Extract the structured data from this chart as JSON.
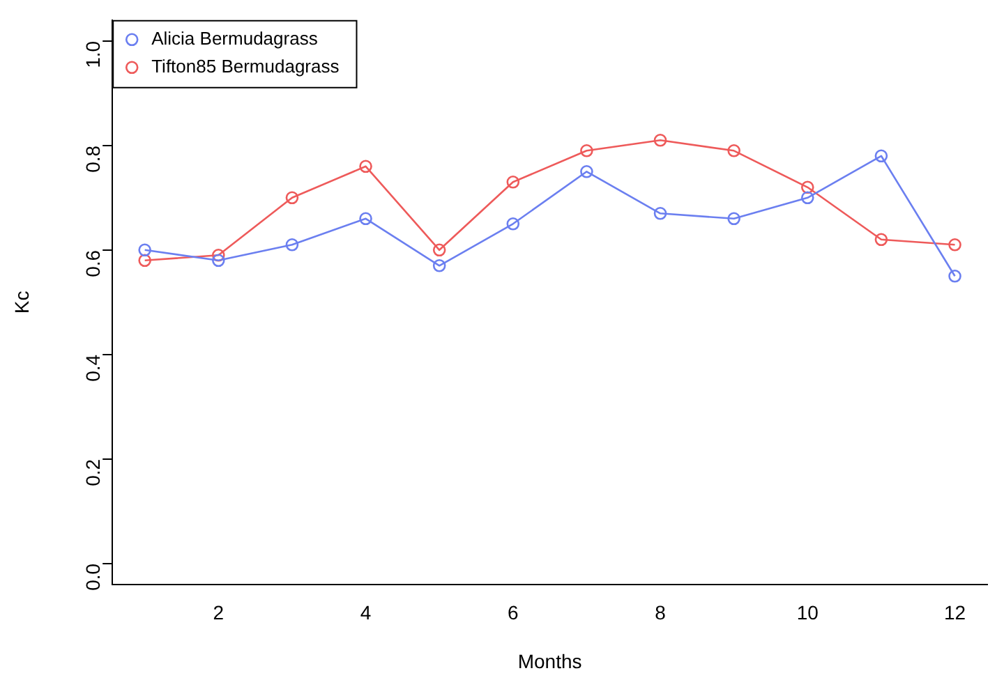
{
  "chart_data": {
    "type": "line",
    "xlabel": "Months",
    "ylabel": "Kc",
    "x": [
      1,
      2,
      3,
      4,
      5,
      6,
      7,
      8,
      9,
      10,
      11,
      12
    ],
    "series": [
      {
        "name": "Alicia Bermudagrass",
        "color": "#6b7ff0",
        "values": [
          0.6,
          0.58,
          0.61,
          0.66,
          0.57,
          0.65,
          0.75,
          0.67,
          0.66,
          0.7,
          0.78,
          0.55
        ]
      },
      {
        "name": "Tifton85 Bermudagrass",
        "color": "#ee5a5a",
        "values": [
          0.58,
          0.59,
          0.7,
          0.76,
          0.6,
          0.73,
          0.79,
          0.81,
          0.79,
          0.72,
          0.62,
          0.61
        ]
      }
    ],
    "xlim": [
      0.56,
      12.44
    ],
    "xticks": [
      2,
      4,
      6,
      8,
      10,
      12
    ],
    "ylim": [
      -0.04,
      1.04
    ],
    "yticks": [
      {
        "value": 0,
        "label": "0.0"
      },
      {
        "value": 0.2,
        "label": "0.2"
      },
      {
        "value": 0.4,
        "label": "0.4"
      },
      {
        "value": 0.6,
        "label": "0.6"
      },
      {
        "value": 0.8,
        "label": "0.8"
      },
      {
        "value": 1,
        "label": "1.0"
      }
    ],
    "grid": false,
    "legend": "top left",
    "marker": "circle",
    "line_style": "solid"
  }
}
